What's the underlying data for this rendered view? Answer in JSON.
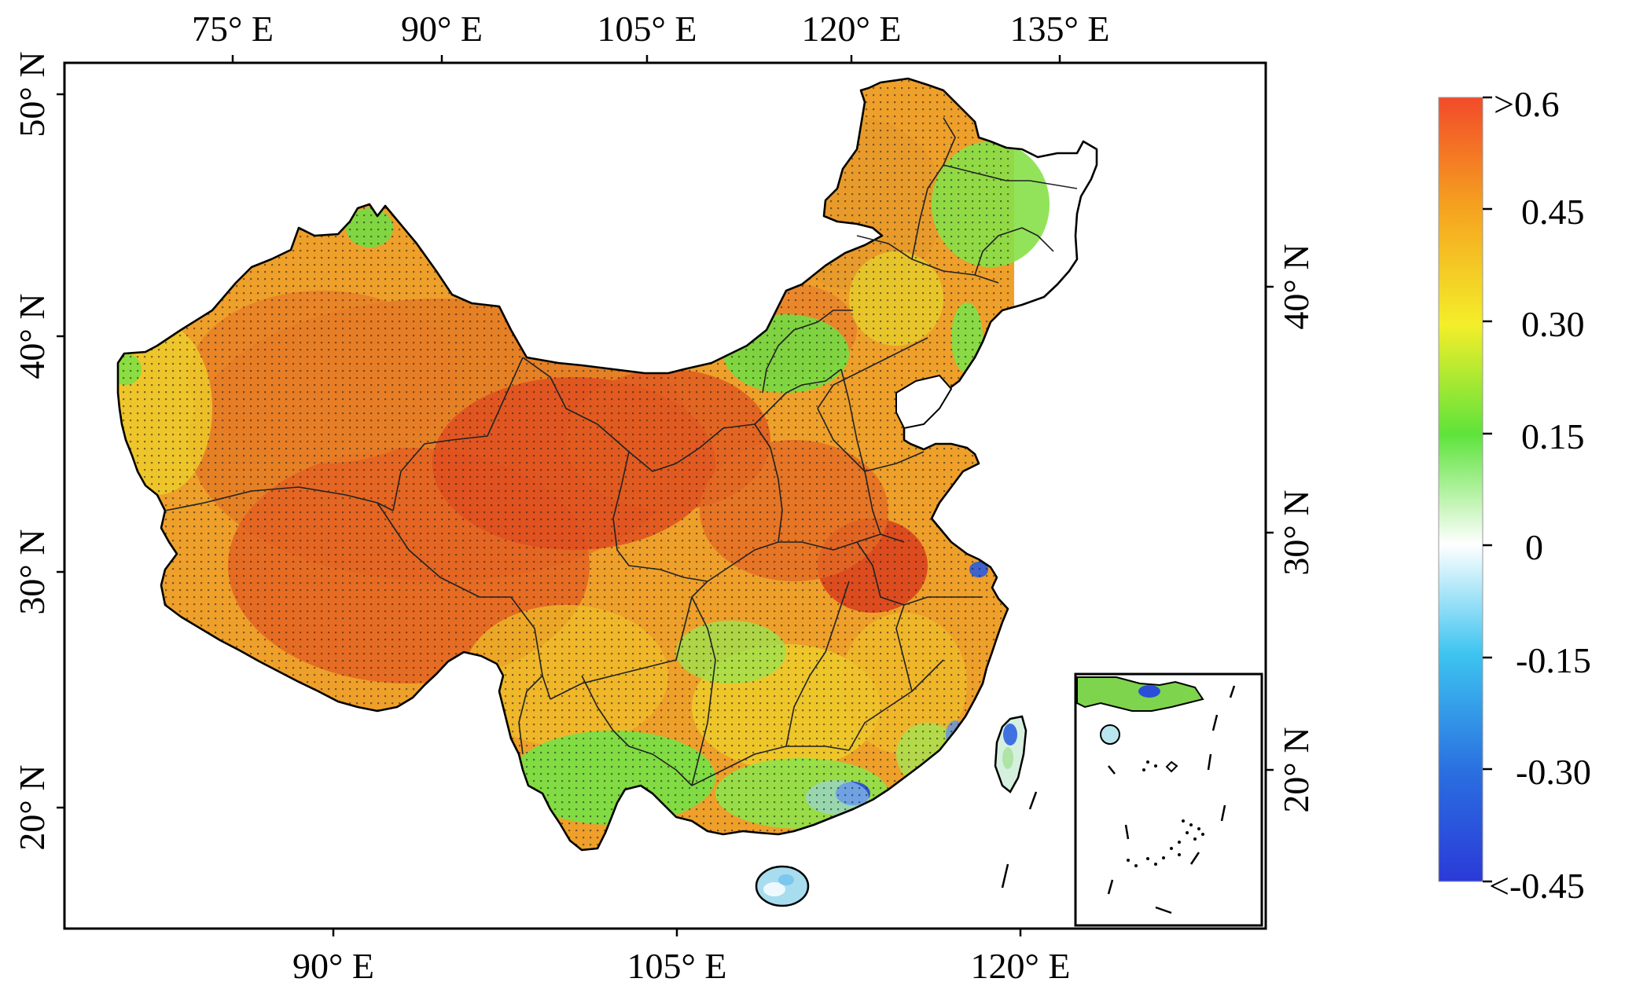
{
  "map": {
    "top_lon_labels": [
      "75° E",
      "90° E",
      "105° E",
      "120° E",
      "135° E"
    ],
    "bottom_lon_labels": [
      "90° E",
      "105° E",
      "120° E"
    ],
    "left_lat_labels": [
      "50° N",
      "40° N",
      "30° N",
      "20° N"
    ],
    "right_lat_labels": [
      "40° N",
      "30° N",
      "20° N"
    ]
  },
  "colorbar": {
    "labels": [
      ">0.6",
      "0.45",
      "0.30",
      "0.15",
      "0",
      "-0.15",
      "-0.30",
      "<-0.45"
    ],
    "values": [
      0.6,
      0.45,
      0.3,
      0.15,
      0,
      -0.15,
      -0.3,
      -0.45
    ],
    "range": [
      -0.45,
      0.6
    ],
    "colors": [
      "#f24a2a",
      "#f5a21f",
      "#f4ee2a",
      "#5ee33b",
      "#ffffff",
      "#3dc4f0",
      "#2a6fe0",
      "#2b3ad8"
    ]
  },
  "palette": {
    "red_orange": "#e2541f",
    "orange": "#ec8a26",
    "yellow": "#eed82a",
    "green": "#7ae040",
    "light_green": "#c9f2a6",
    "blue": "#2a5be0",
    "light_blue": "#bfe6f6"
  },
  "icons": [
    "south-china-sea-inset",
    "stipple-significance-dots"
  ]
}
